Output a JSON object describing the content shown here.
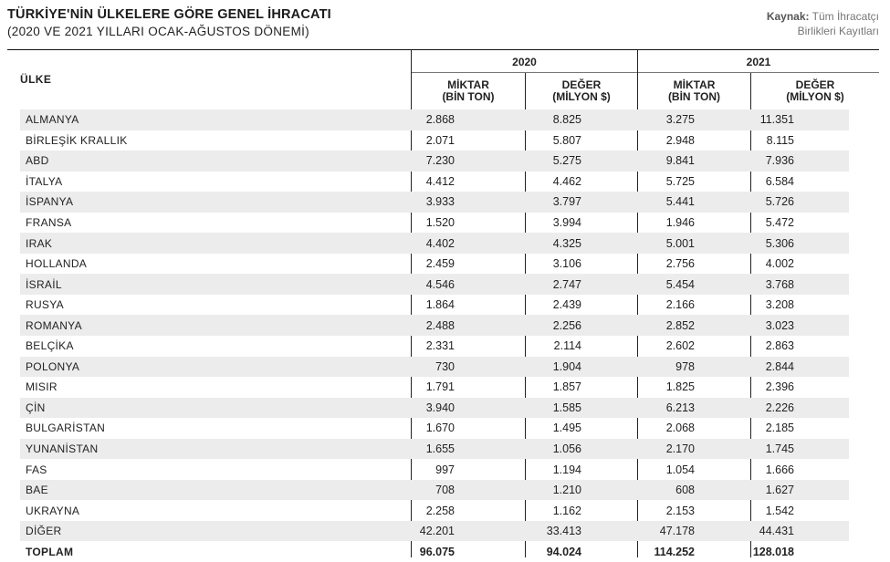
{
  "header": {
    "title": "TÜRKİYE'NİN ÜLKELERE GÖRE GENEL İHRACATI",
    "subtitle": "(2020 VE 2021 YILLARI OCAK-AĞUSTOS DÖNEMİ)",
    "source_label": "Kaynak:",
    "source_line1": "Tüm İhracatçı",
    "source_line2": "Birlikleri Kayıtları"
  },
  "table": {
    "country_header": "ÜLKE",
    "year_2020": "2020",
    "year_2021": "2021",
    "col_quantity_line1": "MİKTAR",
    "col_quantity_line2": "(BİN TON)",
    "col_value_line1": "DEĞER",
    "col_value_line2": "(MİLYON $)",
    "rows": [
      {
        "country": "ALMANYA",
        "q2020": "2.868",
        "v2020": "8.825",
        "q2021": "3.275",
        "v2021": "11.351"
      },
      {
        "country": "BİRLEŞİK KRALLIK",
        "q2020": "2.071",
        "v2020": "5.807",
        "q2021": "2.948",
        "v2021": "8.115"
      },
      {
        "country": "ABD",
        "q2020": "7.230",
        "v2020": "5.275",
        "q2021": "9.841",
        "v2021": "7.936"
      },
      {
        "country": "İTALYA",
        "q2020": "4.412",
        "v2020": "4.462",
        "q2021": "5.725",
        "v2021": "6.584"
      },
      {
        "country": "İSPANYA",
        "q2020": "3.933",
        "v2020": "3.797",
        "q2021": "5.441",
        "v2021": "5.726"
      },
      {
        "country": "FRANSA",
        "q2020": "1.520",
        "v2020": "3.994",
        "q2021": "1.946",
        "v2021": "5.472"
      },
      {
        "country": "IRAK",
        "q2020": "4.402",
        "v2020": "4.325",
        "q2021": "5.001",
        "v2021": "5.306"
      },
      {
        "country": "HOLLANDA",
        "q2020": "2.459",
        "v2020": "3.106",
        "q2021": "2.756",
        "v2021": "4.002"
      },
      {
        "country": "İSRAİL",
        "q2020": "4.546",
        "v2020": "2.747",
        "q2021": "5.454",
        "v2021": "3.768"
      },
      {
        "country": "RUSYA",
        "q2020": "1.864",
        "v2020": "2.439",
        "q2021": "2.166",
        "v2021": "3.208"
      },
      {
        "country": "ROMANYA",
        "q2020": "2.488",
        "v2020": "2.256",
        "q2021": "2.852",
        "v2021": "3.023"
      },
      {
        "country": "BELÇİKA",
        "q2020": "2.331",
        "v2020": "2.114",
        "q2021": "2.602",
        "v2021": "2.863"
      },
      {
        "country": "POLONYA",
        "q2020": "730",
        "v2020": "1.904",
        "q2021": "978",
        "v2021": "2.844"
      },
      {
        "country": "MISIR",
        "q2020": "1.791",
        "v2020": "1.857",
        "q2021": "1.825",
        "v2021": "2.396"
      },
      {
        "country": "ÇİN",
        "q2020": "3.940",
        "v2020": "1.585",
        "q2021": "6.213",
        "v2021": "2.226"
      },
      {
        "country": "BULGARİSTAN",
        "q2020": "1.670",
        "v2020": "1.495",
        "q2021": "2.068",
        "v2021": "2.185"
      },
      {
        "country": "YUNANİSTAN",
        "q2020": "1.655",
        "v2020": "1.056",
        "q2021": "2.170",
        "v2021": "1.745"
      },
      {
        "country": "FAS",
        "q2020": "997",
        "v2020": "1.194",
        "q2021": "1.054",
        "v2021": "1.666"
      },
      {
        "country": "BAE",
        "q2020": "708",
        "v2020": "1.210",
        "q2021": "608",
        "v2021": "1.627"
      },
      {
        "country": "UKRAYNA",
        "q2020": "2.258",
        "v2020": "1.162",
        "q2021": "2.153",
        "v2021": "1.542"
      },
      {
        "country": "DİĞER",
        "q2020": "42.201",
        "v2020": "33.413",
        "q2021": "47.178",
        "v2021": "44.431"
      }
    ],
    "total": {
      "country": "TOPLAM",
      "q2020": "96.075",
      "v2020": "94.024",
      "q2021": "114.252",
      "v2021": "128.018"
    }
  }
}
